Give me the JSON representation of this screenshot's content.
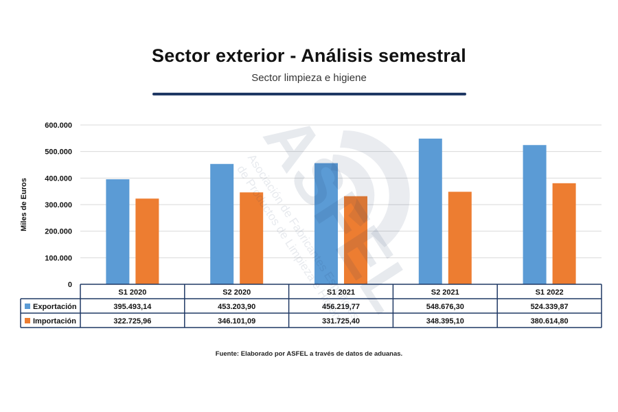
{
  "chart_data": {
    "type": "bar",
    "title": "Sector exterior - Análisis semestral",
    "subtitle": "Sector limpieza e higiene",
    "ylabel": "Miles de Euros",
    "xlabel": "",
    "ylim": [
      0,
      600000
    ],
    "yticks": [
      "0",
      "100.000",
      "200.000",
      "300.000",
      "400.000",
      "500.000",
      "600.000"
    ],
    "ytick_values": [
      0,
      100000,
      200000,
      300000,
      400000,
      500000,
      600000
    ],
    "grid": true,
    "legend": "data-table-left",
    "categories": [
      "S1 2020",
      "S2 2020",
      "S1 2021",
      "S2 2021",
      "S1 2022"
    ],
    "series": [
      {
        "name": "Exportación",
        "color": "#5b9bd5",
        "values": [
          395493.14,
          453203.9,
          456219.77,
          548676.3,
          524339.87
        ],
        "labels": [
          "395.493,14",
          "453.203,90",
          "456.219,77",
          "548.676,30",
          "524.339,87"
        ]
      },
      {
        "name": "Importación",
        "color": "#ed7d31",
        "values": [
          322725.96,
          346101.09,
          331725.4,
          348395.1,
          380614.8
        ],
        "labels": [
          "322.725,96",
          "346.101,09",
          "331.725,40",
          "348.395,10",
          "380.614,80"
        ]
      }
    ],
    "source": "Fuente: Elaborado por ASFEL a través de datos de aduanas."
  },
  "watermark": {
    "logo_text": "ASFEL",
    "line1": "Asociación de Fabricantes Españoles",
    "line2": "de Productos de Limpieza e Higiene"
  },
  "colors": {
    "rule": "#1f3864",
    "table_border": "#1f3864",
    "grid": "#d9d9d9"
  }
}
